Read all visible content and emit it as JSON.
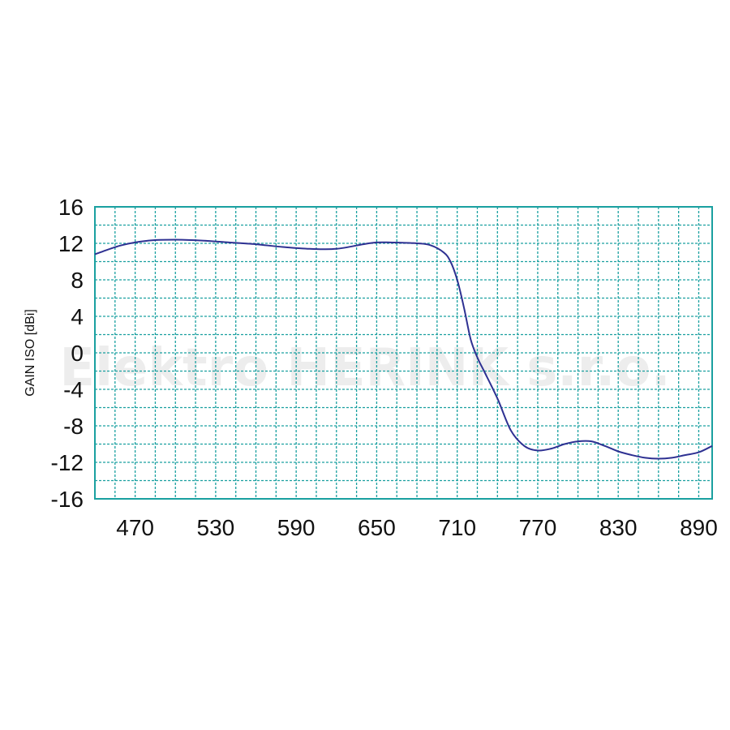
{
  "chart_data": {
    "type": "line",
    "title": "",
    "xlabel": "",
    "ylabel": "GAIN ISO  [dBi]",
    "xlim": [
      440,
      900
    ],
    "ylim": [
      -16,
      16
    ],
    "x_ticks": [
      470,
      530,
      590,
      650,
      710,
      770,
      830,
      890
    ],
    "y_ticks": [
      16,
      12,
      8,
      4,
      0,
      -4,
      -8,
      -12,
      -16
    ],
    "grid": true,
    "watermark": "Elektro HERINK s.r.o.",
    "colors": {
      "line": "#2e3192",
      "grid": "#1aa0a0",
      "frame": "#1aa0a0"
    },
    "series": [
      {
        "x": [
          440,
          460,
          480,
          500,
          520,
          540,
          560,
          580,
          600,
          620,
          640,
          650,
          660,
          680,
          690,
          700,
          705,
          710,
          715,
          720,
          725,
          730,
          740,
          750,
          760,
          770,
          780,
          790,
          800,
          810,
          820,
          830,
          840,
          850,
          860,
          870,
          880,
          890,
          900
        ],
        "y": [
          10.8,
          11.8,
          12.3,
          12.4,
          12.3,
          12.1,
          11.9,
          11.6,
          11.4,
          11.4,
          11.9,
          12.1,
          12.1,
          12.0,
          11.8,
          11.0,
          10.0,
          8.0,
          5.0,
          1.5,
          -0.5,
          -2.0,
          -5.0,
          -8.5,
          -10.2,
          -10.7,
          -10.5,
          -10.0,
          -9.7,
          -9.7,
          -10.2,
          -10.8,
          -11.2,
          -11.5,
          -11.6,
          -11.5,
          -11.2,
          -10.9,
          -10.2
        ]
      }
    ]
  }
}
